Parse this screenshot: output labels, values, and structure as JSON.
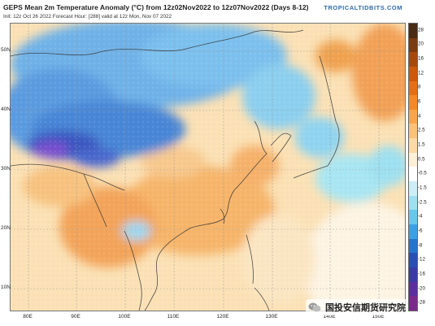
{
  "header": {
    "title": "GEPS Mean 2m Temperature Anomaly (°C) from 12z02Nov2022 to 12z07Nov2022 (Days 8-12)",
    "subtitle": "Init: 12z Oct 26 2022   Forecast Hour: [288]   valid at 12z Mon, Nov 07 2022",
    "site": "TROPICALTIDBITS.COM"
  },
  "map": {
    "lat_labels": [
      "50N",
      "40N",
      "30N",
      "20N",
      "10N"
    ],
    "lon_labels": [
      "80E",
      "90E",
      "100E",
      "110E",
      "120E",
      "130E",
      "140E",
      "150E"
    ]
  },
  "colorbar": {
    "ticks": [
      "28",
      "20",
      "16",
      "12",
      "8",
      "6",
      "4",
      "2.5",
      "1.5",
      "0.5",
      "-0.5",
      "-1.5",
      "-2.5",
      "-4",
      "-6",
      "-8",
      "-12",
      "-16",
      "-20",
      "-28"
    ],
    "colors": [
      "#4a2b14",
      "#7a3a12",
      "#a34a10",
      "#c95a10",
      "#e0701c",
      "#f08a2c",
      "#f6a650",
      "#f8c27c",
      "#fbdaa6",
      "#fdf0d6",
      "#ffffff",
      "#cdeef6",
      "#9fe0f0",
      "#6cc6ea",
      "#3e9fe0",
      "#2874c8",
      "#2a4fb0",
      "#3a3aa0",
      "#5b2f9a",
      "#7a2a8a"
    ]
  },
  "watermark": {
    "text": "国投安信期货研究院"
  }
}
